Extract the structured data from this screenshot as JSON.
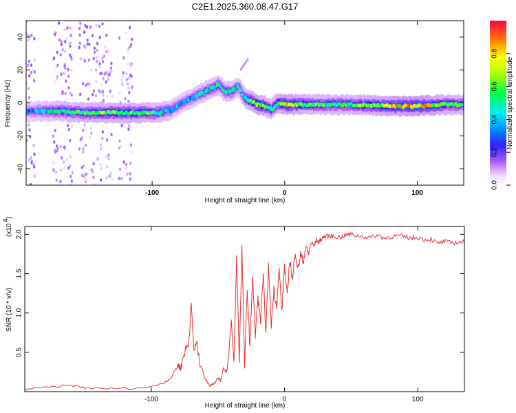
{
  "title": "C2E1.2025.360.08.47.G17",
  "chart_data": [
    {
      "type": "heatmap",
      "title": "C2E1.2025.360.08.47.G17",
      "xlabel": "Height of straight line (km)",
      "ylabel": "Frequency (Hz)",
      "xlim": [
        -195,
        135
      ],
      "ylim": [
        -50,
        50
      ],
      "xticks": [
        -100,
        0,
        100
      ],
      "yticks": [
        -40,
        -20,
        0,
        20,
        40
      ],
      "colorbar": {
        "label": "Normalized spectral amplitude",
        "range": [
          0,
          1
        ],
        "ticks": [
          "0.0",
          "0.2",
          "0.4",
          "0.6",
          "0.8"
        ],
        "tick_values": [
          0.0,
          0.2,
          0.4,
          0.6,
          0.8
        ]
      },
      "ridge": {
        "x": [
          -195,
          -170,
          -150,
          -130,
          -110,
          -95,
          -85,
          -75,
          -65,
          -55,
          -50,
          -45,
          -40,
          -35,
          -30,
          -25,
          -20,
          -15,
          -10,
          -5,
          0,
          20,
          50,
          80,
          100,
          120,
          135
        ],
        "freq": [
          -5,
          -5,
          -6,
          -6,
          -6,
          -6,
          -4,
          1,
          5,
          9,
          11,
          7,
          7,
          10,
          3,
          1,
          -1,
          -2,
          -4,
          0,
          -1,
          -1,
          -1,
          -2,
          -2,
          -1,
          -1
        ],
        "amplitude": [
          0.3,
          0.5,
          0.55,
          0.6,
          0.6,
          0.5,
          0.4,
          0.35,
          0.4,
          0.45,
          0.5,
          0.45,
          0.45,
          0.4,
          0.5,
          0.6,
          0.7,
          0.6,
          0.5,
          0.6,
          0.75,
          0.55,
          0.55,
          0.7,
          0.8,
          0.6,
          0.5
        ]
      },
      "noise_bands_x": [
        [
          -195,
          -188
        ],
        [
          -175,
          -160
        ],
        [
          -155,
          -130
        ],
        [
          -125,
          -115
        ]
      ]
    },
    {
      "type": "line",
      "xlabel": "Height of straight line (km)",
      "ylabel": "SNR (10 * v/v)",
      "y_scale_label": "(x10",
      "y_scale_exponent": "4",
      "x_tick_labels": [
        "-100",
        "0",
        "100"
      ],
      "y_tick_labels": [
        "0.5",
        "1.0",
        "1.5",
        "2.0"
      ],
      "xticks": [
        -100,
        0,
        100
      ],
      "yticks": [
        0.5,
        1.0,
        1.5,
        2.0
      ],
      "xlim": [
        -195,
        135
      ],
      "ylim": [
        0,
        2.1
      ],
      "color": "#e83030",
      "series": [
        {
          "name": "SNR",
          "x": [
            -195,
            -180,
            -160,
            -150,
            -140,
            -120,
            -100,
            -90,
            -85,
            -80,
            -78,
            -76,
            -74,
            -72,
            -70,
            -68,
            -66,
            -64,
            -62,
            -60,
            -58,
            -56,
            -54,
            -52,
            -50,
            -48,
            -46,
            -44,
            -42,
            -40,
            -38,
            -36,
            -34,
            -32,
            -30,
            -28,
            -26,
            -24,
            -22,
            -20,
            -18,
            -16,
            -14,
            -12,
            -10,
            -8,
            -6,
            -4,
            -2,
            0,
            2,
            4,
            6,
            8,
            10,
            12,
            14,
            16,
            18,
            20,
            22,
            24,
            26,
            28,
            30,
            34,
            38,
            42,
            46,
            50,
            55,
            60,
            65,
            70,
            75,
            80,
            85,
            90,
            95,
            100,
            105,
            110,
            115,
            120,
            125,
            130,
            135
          ],
          "y": [
            0.03,
            0.05,
            0.08,
            0.05,
            0.04,
            0.04,
            0.06,
            0.12,
            0.18,
            0.35,
            0.28,
            0.45,
            0.55,
            0.62,
            1.1,
            0.52,
            0.62,
            0.4,
            0.3,
            0.18,
            0.12,
            0.08,
            0.1,
            0.12,
            0.18,
            0.14,
            0.3,
            0.25,
            0.42,
            0.9,
            0.35,
            1.72,
            0.4,
            1.85,
            0.3,
            1.3,
            0.55,
            1.5,
            0.7,
            1.2,
            0.9,
            1.45,
            0.75,
            1.6,
            0.85,
            1.3,
            1.1,
            1.55,
            1.0,
            1.62,
            1.2,
            1.7,
            1.4,
            1.8,
            1.55,
            1.75,
            1.65,
            1.85,
            1.75,
            1.9,
            1.85,
            1.93,
            1.9,
            1.95,
            1.97,
            1.98,
            1.97,
            1.96,
            1.99,
            2.0,
            1.98,
            1.97,
            1.96,
            1.99,
            1.95,
            1.97,
            1.98,
            1.97,
            1.95,
            1.96,
            1.93,
            1.94,
            1.88,
            1.91,
            1.89,
            1.9,
            1.9
          ]
        }
      ]
    }
  ],
  "colors": {
    "line": "#e83030",
    "frame": "#000000",
    "background": "#ffffff"
  }
}
